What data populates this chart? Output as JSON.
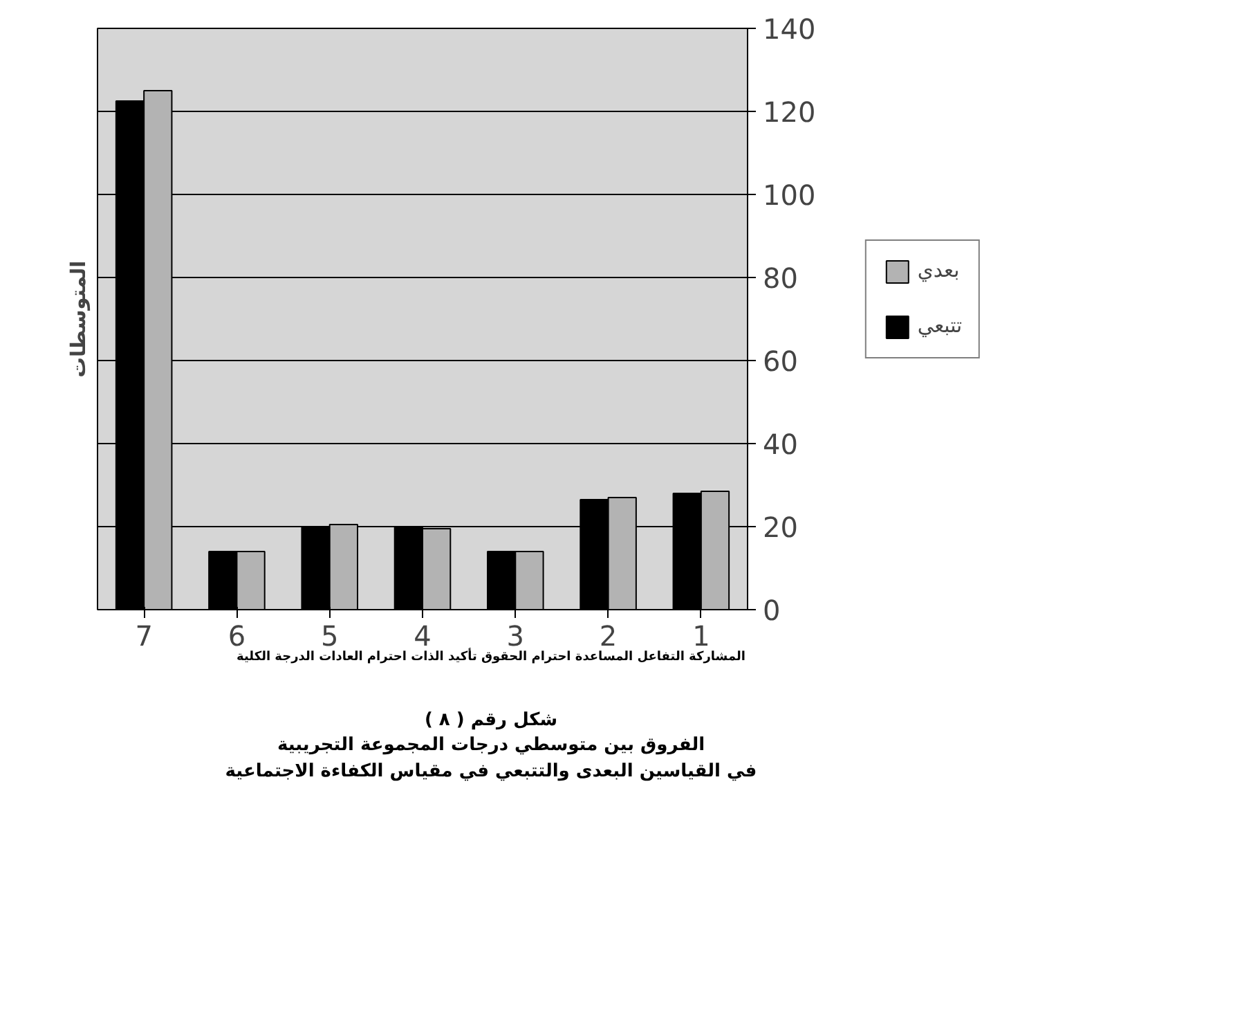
{
  "chart_data": {
    "type": "bar",
    "title": "شكل رقم ( ٨ )",
    "subtitle": "الفروق بين متوسطي درجات المجموعة التجريبية\nفي القياسين  البعدى والتتبعي في مقياس الكفاءة الاجتماعية",
    "xlabel": "المشاركة  التفاعل المساعدة  احترام  الحقوق تأكيد  الذات احترام العادات الدرجة  الكلية",
    "ylabel": "المتوسطات",
    "categories": [
      "7",
      "6",
      "5",
      "4",
      "3",
      "2",
      "1"
    ],
    "series": [
      {
        "name": "تتبعي",
        "color": "#000000",
        "values": [
          122.5,
          14,
          20,
          20,
          14,
          26.5,
          28
        ]
      },
      {
        "name": "بعدي",
        "color": "#b3b3b3",
        "values": [
          125,
          14,
          20.5,
          19.5,
          14,
          27,
          28.5
        ]
      }
    ],
    "ylim": [
      0,
      140
    ],
    "yticks": [
      0,
      20,
      40,
      60,
      80,
      100,
      120,
      140
    ],
    "grid": "y",
    "legend": "right"
  }
}
